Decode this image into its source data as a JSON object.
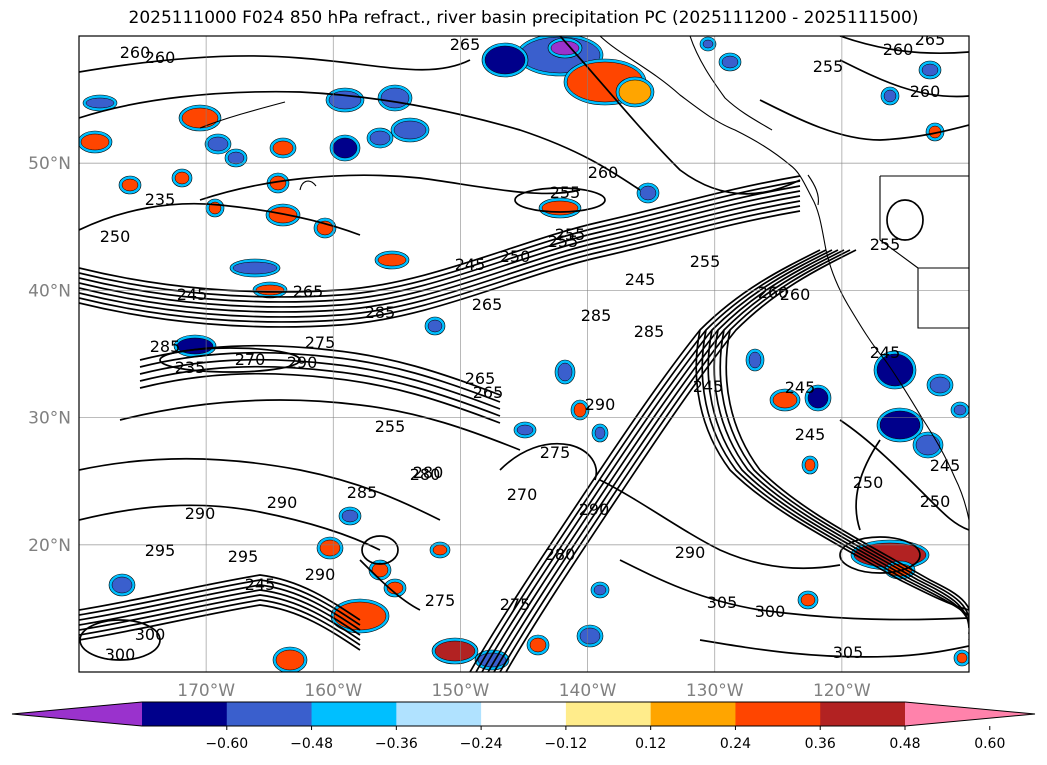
{
  "title": "2025111000 F024 850 hPa refract., river basin precipitation PC (2025111200 - 2025111500)",
  "lat_labels": [
    "50°N",
    "40°N",
    "30°N",
    "20°N"
  ],
  "lon_labels": [
    "170°W",
    "160°W",
    "150°W",
    "140°W",
    "130°W",
    "120°W"
  ],
  "contour_labels": [
    "260",
    "260",
    "265",
    "260",
    "265",
    "255",
    "260",
    "235",
    "250",
    "255",
    "260",
    "255",
    "245",
    "250",
    "255",
    "245",
    "255",
    "265",
    "260",
    "245",
    "285",
    "265",
    "285",
    "285",
    "270",
    "285",
    "290",
    "275",
    "235",
    "265",
    "245",
    "245",
    "250",
    "275",
    "280",
    "270",
    "255",
    "280",
    "290",
    "285",
    "290",
    "290",
    "290",
    "280",
    "290",
    "295",
    "295",
    "300",
    "305",
    "300",
    "305",
    "245",
    "245",
    "250",
    "245",
    "255",
    "245",
    "275",
    "265",
    "290",
    "260",
    "300",
    "275"
  ],
  "colorbar": {
    "ticks": [
      "−0.60",
      "−0.48",
      "−0.36",
      "−0.24",
      "−0.12",
      "0.12",
      "0.24",
      "0.36",
      "0.48",
      "0.60"
    ],
    "colors": [
      "#9a32cd",
      "#00008b",
      "#3a5fcd",
      "#00bfff",
      "#b0e2ff",
      "#ffffff",
      "#ffec8b",
      "#ffa500",
      "#ff4500",
      "#b22222",
      "#ff82ab"
    ]
  },
  "chart_data": {
    "type": "heatmap",
    "title": "2025111000 F024 850 hPa refract., river basin precipitation PC (2025111200 - 2025111500)",
    "lat_ticks": [
      50,
      40,
      30,
      20
    ],
    "lon_ticks": [
      -170,
      -160,
      -150,
      -140,
      -130,
      -120
    ],
    "lat_range": [
      10,
      60
    ],
    "lon_range": [
      -180,
      -110
    ],
    "colorbar_ticks": [
      -0.6,
      -0.48,
      -0.36,
      -0.24,
      -0.12,
      0.12,
      0.24,
      0.36,
      0.48,
      0.6
    ],
    "colorbar_extend": "both",
    "grid": true
  }
}
